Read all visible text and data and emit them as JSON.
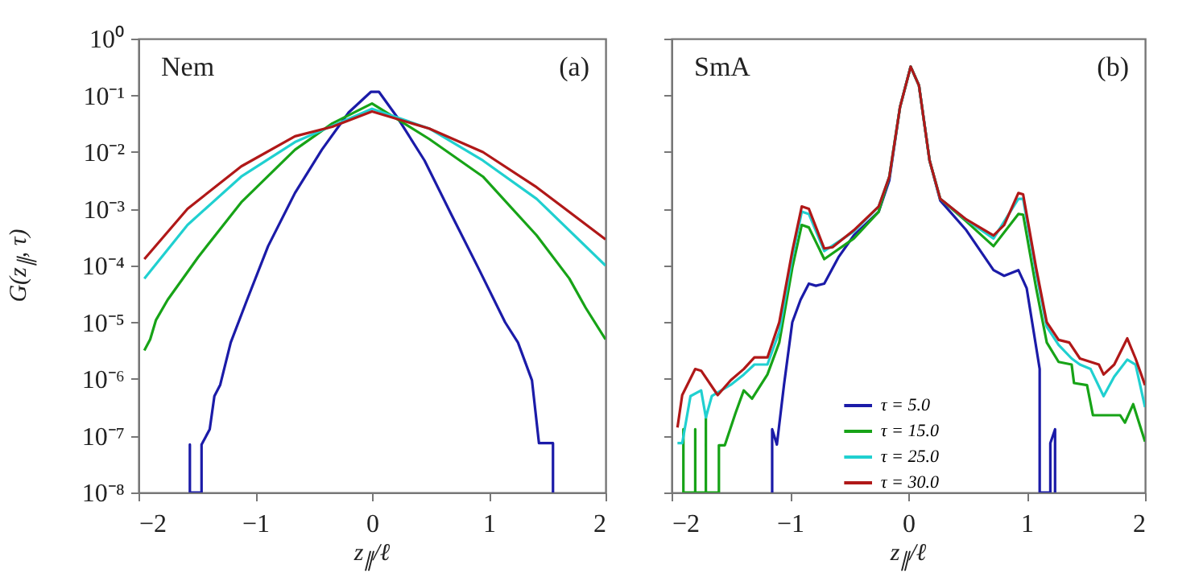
{
  "chart_data": [
    {
      "type": "line",
      "ylabel": "G(z$_{∥}$, τ)",
      "xlabel": "z$_{∥}$/ℓ",
      "annotations": [
        "Nem",
        "(a)"
      ],
      "log": "y",
      "grid": false,
      "legend": false,
      "xlim": [
        -2,
        2
      ],
      "xticks": [
        -2,
        -1,
        0,
        1,
        2
      ],
      "ylim": [
        1e-08,
        1
      ],
      "yticks": [
        {
          "value": 1e-08,
          "label": "10⁻⁸"
        },
        {
          "value": 1e-07,
          "label": "10⁻⁷"
        },
        {
          "value": 1e-06,
          "label": "10⁻⁶"
        },
        {
          "value": 1e-05,
          "label": "10⁻⁵"
        },
        {
          "value": 0.0001,
          "label": "10⁻⁴"
        },
        {
          "value": 0.001,
          "label": "10⁻³"
        },
        {
          "value": 0.01,
          "label": "10⁻²"
        },
        {
          "value": 0.1,
          "label": "10⁻¹"
        },
        {
          "value": 1,
          "label": "10⁰"
        }
      ],
      "series": [
        {
          "color": "#1b1ba8",
          "x": [
            -1.56,
            -1.56,
            -1.56,
            -1.46,
            -1.46,
            -1.39,
            -1.35,
            -1.3,
            -1.21,
            -1.07,
            -0.89,
            -0.66,
            -0.43,
            -0.2,
            -0.01,
            0.06,
            0.22,
            0.45,
            0.68,
            0.91,
            1.14,
            1.25,
            1.37,
            1.43,
            1.55,
            1.55
          ],
          "values": [
            1e-08,
            7e-08,
            1e-08,
            1e-08,
            7e-08,
            1.3e-07,
            5e-07,
            7.9e-07,
            4.4e-06,
            2.5e-05,
            0.00022,
            0.0019,
            0.011,
            0.05,
            0.115,
            0.115,
            0.04,
            0.0071,
            0.00079,
            9.1e-05,
            1e-05,
            4.4e-06,
            9.5e-07,
            7.4e-08,
            7.4e-08,
            1e-08
          ]
        },
        {
          "color": "#17a317",
          "x": [
            -1.95,
            -1.9,
            -1.85,
            -1.75,
            -1.49,
            -1.12,
            -0.66,
            -0.34,
            0,
            0.49,
            0.95,
            1.41,
            1.69,
            1.83,
            2
          ],
          "values": [
            3.2e-06,
            5e-06,
            1.1e-05,
            2.5e-05,
            0.00014,
            0.0013,
            0.011,
            0.032,
            0.072,
            0.017,
            0.0037,
            0.00034,
            5.9e-05,
            1.8e-05,
            5e-06
          ]
        },
        {
          "color": "#20d0d0",
          "x": [
            -1.95,
            -1.58,
            -1.12,
            -0.66,
            -0.34,
            0,
            0.49,
            0.95,
            1.41,
            2
          ],
          "values": [
            5.9e-05,
            0.00052,
            0.0037,
            0.015,
            0.029,
            0.058,
            0.026,
            0.0071,
            0.0015,
            0.0001
          ]
        },
        {
          "color": "#b01818",
          "x": [
            -1.95,
            -1.58,
            -1.12,
            -0.66,
            -0.34,
            0,
            0.49,
            0.95,
            1.41,
            2
          ],
          "values": [
            0.00013,
            0.001,
            0.0056,
            0.019,
            0.028,
            0.052,
            0.026,
            0.01,
            0.0024,
            0.00029
          ]
        }
      ]
    },
    {
      "type": "line",
      "xlabel": "z$_{∥}$/ℓ",
      "annotations": [
        "SmA",
        "(b)"
      ],
      "log": "y",
      "grid": false,
      "legend": "bottom",
      "tick_labels": "x",
      "xlim": [
        -2,
        2
      ],
      "xticks": [
        -2,
        -1,
        0,
        1,
        2
      ],
      "ylim": [
        1e-08,
        1
      ],
      "yticks": [
        {
          "value": 1e-08,
          "label": null
        },
        {
          "value": 1e-07,
          "label": null
        },
        {
          "value": 1e-06,
          "label": null
        },
        {
          "value": 1e-05,
          "label": null
        },
        {
          "value": 0.0001,
          "label": null
        },
        {
          "value": 0.001,
          "label": null
        },
        {
          "value": 0.01,
          "label": null
        },
        {
          "value": 0.1,
          "label": null
        },
        {
          "value": 1,
          "label": null
        }
      ],
      "series": [
        {
          "name": "τ = 5.0",
          "color": "#1b1ba8",
          "x": [
            -1.15,
            -1.15,
            -1.11,
            -1.05,
            -0.98,
            -0.91,
            -0.84,
            -0.78,
            -0.71,
            -0.59,
            -0.46,
            -0.25,
            -0.16,
            -0.07,
            0.02,
            0.09,
            0.18,
            0.27,
            0.49,
            0.72,
            0.81,
            0.93,
            1.0,
            1.11,
            1.11,
            1.2,
            1.2,
            1.24,
            1.24
          ],
          "values": [
            1e-08,
            1.3e-07,
            7e-08,
            7.9e-07,
            1e-05,
            2.5e-05,
            4.8e-05,
            4.4e-05,
            4.8e-05,
            0.00014,
            0.00034,
            0.00089,
            0.0032,
            0.062,
            0.32,
            0.15,
            0.0071,
            0.0014,
            0.00042,
            8.3e-05,
            6.6e-05,
            8.3e-05,
            4e-05,
            1.5e-06,
            1e-08,
            1e-08,
            7.4e-08,
            1.3e-07,
            1e-08
          ]
        },
        {
          "name": "τ = 15.0",
          "color": "#17a317",
          "x": [
            -1.9,
            -1.9,
            -1.9,
            -1.8,
            -1.8,
            -1.8,
            -1.71,
            -1.71,
            -1.71,
            -1.6,
            -1.6,
            -1.55,
            -1.46,
            -1.39,
            -1.32,
            -1.19,
            -1.09,
            -0.98,
            -0.9,
            -0.84,
            -0.71,
            -0.46,
            -0.25,
            -0.16,
            -0.07,
            0.02,
            0.09,
            0.18,
            0.27,
            0.49,
            0.72,
            0.93,
            0.97,
            1.08,
            1.17,
            1.27,
            1.38,
            1.4,
            1.51,
            1.56,
            1.79,
            1.83,
            1.9,
            2.0
          ],
          "values": [
            1e-08,
            1.3e-07,
            1e-08,
            1e-08,
            1.3e-07,
            1e-08,
            1e-08,
            2.6e-07,
            1e-08,
            1e-08,
            6.8e-08,
            6.8e-08,
            2.5e-07,
            6.3e-07,
            4.5e-07,
            1.2e-06,
            4.4e-06,
            9.1e-05,
            0.00052,
            0.00047,
            0.00013,
            0.0003,
            0.00089,
            0.0037,
            0.062,
            0.32,
            0.15,
            0.0071,
            0.0015,
            0.0006,
            0.00022,
            0.00081,
            0.00079,
            4e-05,
            4.4e-06,
            2e-06,
            1.8e-06,
            8.5e-07,
            7.8e-07,
            2.3e-07,
            2.3e-07,
            1.7e-07,
            3.6e-07,
            7.9e-08
          ]
        },
        {
          "name": "τ = 25.0",
          "color": "#20d0d0",
          "x": [
            -1.95,
            -1.91,
            -1.84,
            -1.75,
            -1.71,
            -1.66,
            -1.5,
            -1.39,
            -1.3,
            -1.19,
            -1.09,
            -0.98,
            -0.9,
            -0.84,
            -0.71,
            -0.46,
            -0.25,
            -0.16,
            -0.07,
            0.02,
            0.09,
            0.18,
            0.27,
            0.49,
            0.72,
            0.93,
            0.97,
            1.08,
            1.17,
            1.27,
            1.38,
            1.45,
            1.54,
            1.65,
            1.74,
            1.85,
            1.92,
            2.0
          ],
          "values": [
            7.4e-08,
            7.4e-08,
            5e-07,
            6.3e-07,
            2.1e-07,
            5e-07,
            7.9e-07,
            1.2e-06,
            1.8e-06,
            1.8e-06,
            6.8e-06,
            0.00014,
            0.00089,
            0.00081,
            0.00018,
            0.0004,
            0.0011,
            0.0037,
            0.062,
            0.32,
            0.15,
            0.0071,
            0.0015,
            0.00064,
            0.0003,
            0.0015,
            0.0015,
            7.4e-05,
            8.3e-06,
            4e-06,
            2.3e-06,
            1.8e-06,
            1.5e-06,
            5e-07,
            1.1e-06,
            2.2e-06,
            1.8e-06,
            3.2e-07
          ]
        },
        {
          "name": "τ = 30.0",
          "color": "#b01818",
          "x": [
            -1.95,
            -1.91,
            -1.8,
            -1.75,
            -1.61,
            -1.5,
            -1.39,
            -1.3,
            -1.19,
            -1.09,
            -0.98,
            -0.9,
            -0.84,
            -0.71,
            -0.64,
            -0.46,
            -0.25,
            -0.16,
            -0.07,
            0.02,
            0.09,
            0.18,
            0.27,
            0.49,
            0.72,
            0.81,
            0.93,
            0.97,
            1.08,
            1.17,
            1.27,
            1.36,
            1.45,
            1.61,
            1.65,
            1.74,
            1.85,
            1.92,
            2.0
          ],
          "values": [
            1.4e-07,
            5.2e-07,
            1.5e-06,
            1.4e-06,
            5.2e-07,
            9.5e-07,
            1.5e-06,
            2.4e-06,
            2.4e-06,
            1e-05,
            0.00018,
            0.0011,
            0.001,
            0.0002,
            0.00021,
            0.00042,
            0.0011,
            0.0037,
            0.062,
            0.32,
            0.15,
            0.0071,
            0.0015,
            0.00065,
            0.00034,
            0.00052,
            0.0019,
            0.0018,
            9.1e-05,
            1e-05,
            4.9e-06,
            4.4e-06,
            2.3e-06,
            1.8e-06,
            1.2e-06,
            1.8e-06,
            5.2e-06,
            2.3e-06,
            7.8e-07
          ]
        }
      ]
    }
  ]
}
